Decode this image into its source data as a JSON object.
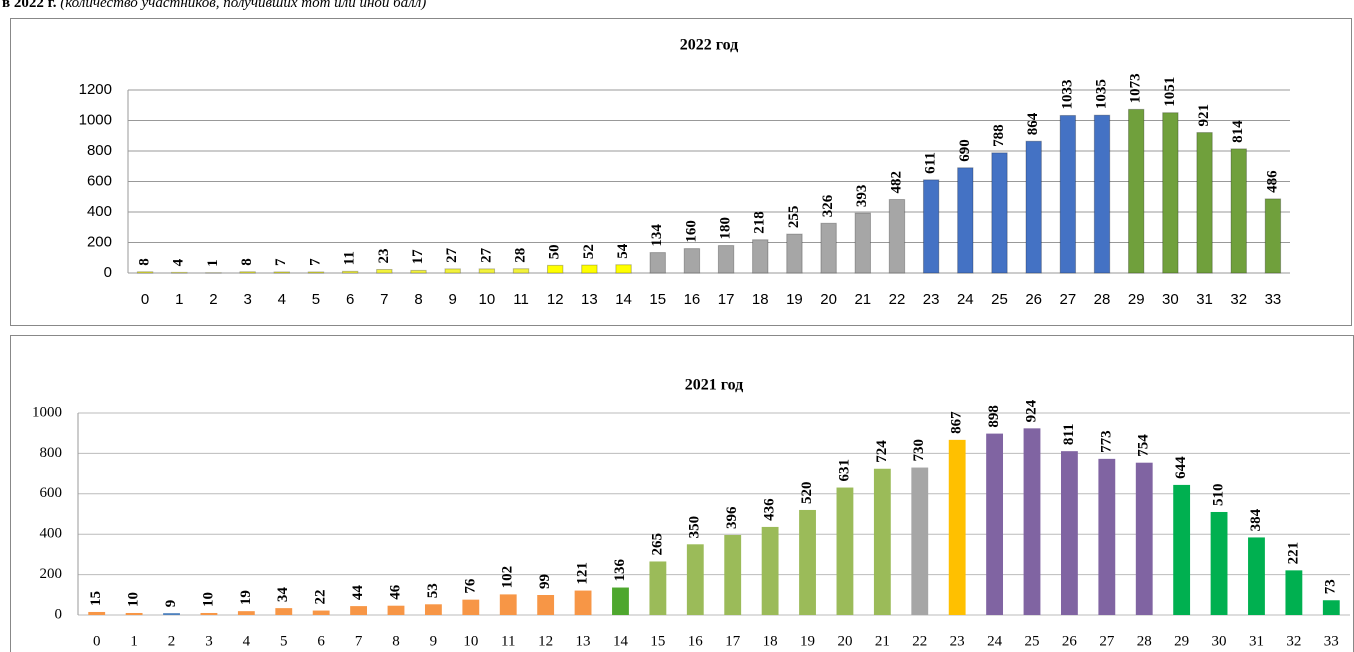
{
  "caption": {
    "bold": "в 2022 г.",
    "italic": "(количество участников, получивших тот или иной балл)"
  },
  "chart_data": [
    {
      "type": "bar",
      "title": "2022 год",
      "categories": [
        "0",
        "1",
        "2",
        "3",
        "4",
        "5",
        "6",
        "7",
        "8",
        "9",
        "10",
        "11",
        "12",
        "13",
        "14",
        "15",
        "16",
        "17",
        "18",
        "19",
        "20",
        "21",
        "22",
        "23",
        "24",
        "25",
        "26",
        "27",
        "28",
        "29",
        "30",
        "31",
        "32",
        "33"
      ],
      "values": [
        8,
        4,
        1,
        8,
        7,
        7,
        11,
        23,
        17,
        27,
        27,
        28,
        50,
        52,
        54,
        134,
        160,
        180,
        218,
        255,
        326,
        393,
        482,
        611,
        690,
        788,
        864,
        1033,
        1035,
        1073,
        1051,
        921,
        814,
        486
      ],
      "colors": [
        "#f2f23c",
        "#f2f23c",
        "#f2f23c",
        "#f2f23c",
        "#f2f23c",
        "#f2f23c",
        "#f2f23c",
        "#f2f23c",
        "#f2f23c",
        "#f2f23c",
        "#f2f23c",
        "#f2f23c",
        "#ffff00",
        "#ffff00",
        "#ffff00",
        "#a6a6a6",
        "#a6a6a6",
        "#a6a6a6",
        "#a6a6a6",
        "#a6a6a6",
        "#a6a6a6",
        "#a6a6a6",
        "#a6a6a6",
        "#4472c4",
        "#4472c4",
        "#4472c4",
        "#4472c4",
        "#4472c4",
        "#4472c4",
        "#70a03c",
        "#70a03c",
        "#70a03c",
        "#70a03c",
        "#70a03c"
      ],
      "ylim": [
        0,
        1200
      ],
      "yticks": [
        0,
        200,
        400,
        600,
        800,
        1000,
        1200
      ],
      "grid": true
    },
    {
      "type": "bar",
      "title": "2021 год",
      "categories": [
        "0",
        "1",
        "2",
        "3",
        "4",
        "5",
        "6",
        "7",
        "8",
        "9",
        "10",
        "11",
        "12",
        "13",
        "14",
        "15",
        "16",
        "17",
        "18",
        "19",
        "20",
        "21",
        "22",
        "23",
        "24",
        "25",
        "26",
        "27",
        "28",
        "29",
        "30",
        "31",
        "32",
        "33"
      ],
      "values": [
        15,
        10,
        9,
        10,
        19,
        34,
        22,
        44,
        46,
        53,
        76,
        102,
        99,
        121,
        136,
        265,
        350,
        396,
        436,
        520,
        631,
        724,
        730,
        867,
        898,
        924,
        811,
        773,
        754,
        644,
        510,
        384,
        221,
        73
      ],
      "colors": [
        "#f79646",
        "#f79646",
        "#4f81bd",
        "#f79646",
        "#f79646",
        "#f79646",
        "#f79646",
        "#f79646",
        "#f79646",
        "#f79646",
        "#f79646",
        "#f79646",
        "#f79646",
        "#f79646",
        "#4ea72e",
        "#9bbb59",
        "#9bbb59",
        "#9bbb59",
        "#9bbb59",
        "#9bbb59",
        "#9bbb59",
        "#9bbb59",
        "#a6a6a6",
        "#ffc000",
        "#8064a2",
        "#8064a2",
        "#8064a2",
        "#8064a2",
        "#8064a2",
        "#00b050",
        "#00b050",
        "#00b050",
        "#00b050",
        "#00b050"
      ],
      "ylim": [
        0,
        1000
      ],
      "yticks": [
        0,
        200,
        400,
        600,
        800,
        1000
      ],
      "grid": true
    }
  ]
}
